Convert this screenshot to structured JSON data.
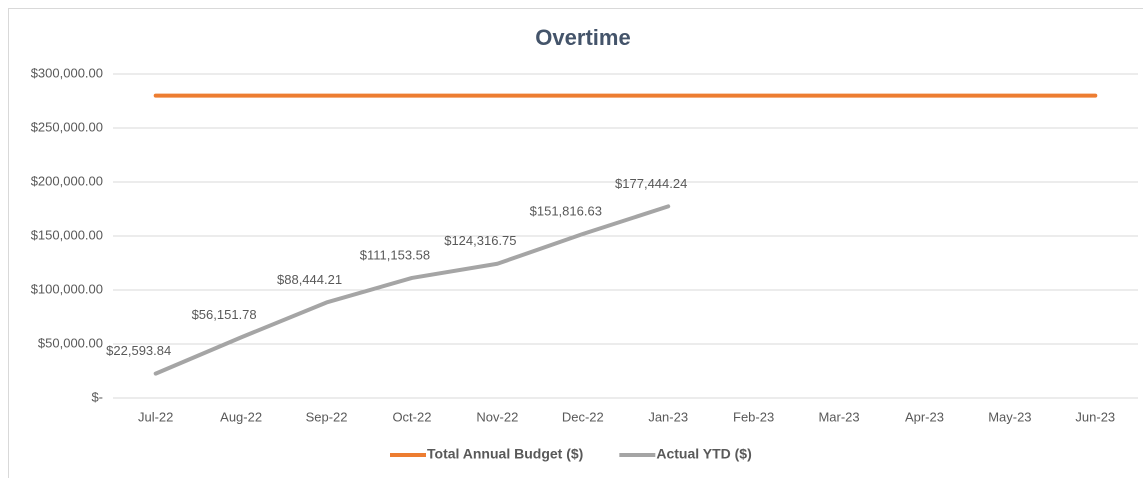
{
  "chart_data": {
    "type": "line",
    "title": "Overtime",
    "categories": [
      "Jul-22",
      "Aug-22",
      "Sep-22",
      "Oct-22",
      "Nov-22",
      "Dec-22",
      "Jan-23",
      "Feb-23",
      "Mar-23",
      "Apr-23",
      "May-23",
      "Jun-23"
    ],
    "series": [
      {
        "name": "Total Annual Budget ($)",
        "color": "#ed7d31",
        "values": [
          280000,
          280000,
          280000,
          280000,
          280000,
          280000,
          280000,
          280000,
          280000,
          280000,
          280000,
          280000
        ]
      },
      {
        "name": "Actual YTD ($)",
        "color": "#a5a5a5",
        "values": [
          22593.84,
          56151.78,
          88444.21,
          111153.58,
          124316.75,
          151816.63,
          177444.24,
          null,
          null,
          null,
          null,
          null
        ],
        "value_labels": [
          "$22,593.84",
          "$56,151.78",
          "$88,444.21",
          "$111,153.58",
          "$124,316.75",
          "$151,816.63",
          "$177,444.24",
          null,
          null,
          null,
          null,
          null
        ]
      }
    ],
    "ylim": [
      0,
      300000
    ],
    "yticks": [
      {
        "value": 0,
        "label": "$-"
      },
      {
        "value": 50000,
        "label": "$50,000.00"
      },
      {
        "value": 100000,
        "label": "$100,000.00"
      },
      {
        "value": 150000,
        "label": "$150,000.00"
      },
      {
        "value": 200000,
        "label": "$200,000.00"
      },
      {
        "value": 250000,
        "label": "$250,000.00"
      },
      {
        "value": 300000,
        "label": "$300,000.00"
      }
    ],
    "grid": true,
    "legend": "bottom"
  }
}
